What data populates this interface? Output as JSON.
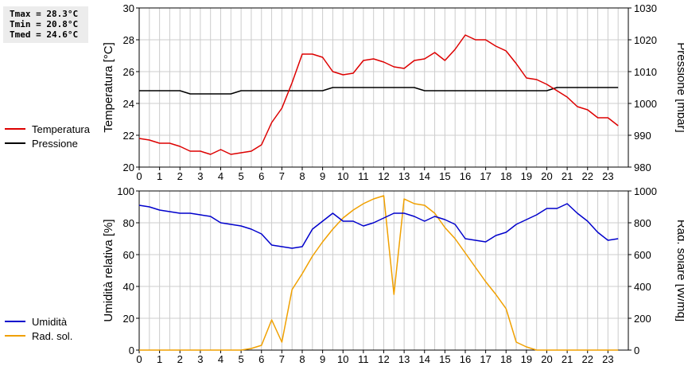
{
  "stats": {
    "tmax": "Tmax = 28.3°C",
    "tmin": "Tmin = 20.8°C",
    "tmed": "Tmed = 24.6°C"
  },
  "colors": {
    "temperature": "#dd0000",
    "pressure": "#000000",
    "humidity": "#0000cc",
    "radiation": "#f0a000",
    "grid": "#cccccc"
  },
  "chart_data": [
    {
      "type": "line",
      "legend": [
        {
          "name": "Temperatura",
          "color": "#dd0000"
        },
        {
          "name": "Pressione",
          "color": "#000000"
        }
      ],
      "xlabel": "",
      "ylabel": "Temperatura [°C]",
      "y2label": "Pressione [mbar]",
      "xlim": [
        0,
        24
      ],
      "ylim": [
        20,
        30
      ],
      "y2lim": [
        980,
        1030
      ],
      "xticks": [
        "0",
        "1",
        "2",
        "3",
        "4",
        "5",
        "6",
        "7",
        "8",
        "9",
        "10",
        "11",
        "12",
        "13",
        "14",
        "15",
        "16",
        "17",
        "18",
        "19",
        "20",
        "21",
        "22",
        "23"
      ],
      "yticks": [
        "20",
        "22",
        "24",
        "26",
        "28",
        "30"
      ],
      "y2ticks": [
        "980",
        "990",
        "1000",
        "1010",
        "1020",
        "1030"
      ],
      "grid": true,
      "series": [
        {
          "name": "Temperatura",
          "axis": "left",
          "x": [
            0,
            0.5,
            1,
            1.5,
            2,
            2.5,
            3,
            3.5,
            4,
            4.5,
            5,
            5.5,
            6,
            6.5,
            7,
            7.5,
            8,
            8.5,
            9,
            9.5,
            10,
            10.5,
            11,
            11.5,
            12,
            12.5,
            13,
            13.5,
            14,
            14.5,
            15,
            15.5,
            16,
            16.5,
            17,
            17.5,
            18,
            18.5,
            19,
            19.5,
            20,
            20.5,
            21,
            21.5,
            22,
            22.5,
            23,
            23.5
          ],
          "values": [
            21.8,
            21.7,
            21.5,
            21.5,
            21.3,
            21.0,
            21.0,
            20.8,
            21.1,
            20.8,
            20.9,
            21.0,
            21.4,
            22.8,
            23.7,
            25.3,
            27.1,
            27.1,
            26.9,
            26.0,
            25.8,
            25.9,
            26.7,
            26.8,
            26.6,
            26.3,
            26.2,
            26.7,
            26.8,
            27.2,
            26.7,
            27.4,
            28.3,
            28.0,
            28.0,
            27.6,
            27.3,
            26.5,
            25.6,
            25.5,
            25.2,
            24.8,
            24.4,
            23.8,
            23.6,
            23.1,
            23.1,
            22.6
          ]
        },
        {
          "name": "Pressione",
          "axis": "right",
          "x": [
            0,
            0.5,
            1,
            1.5,
            2,
            2.5,
            3,
            3.5,
            4,
            4.5,
            5,
            5.5,
            6,
            6.5,
            7,
            7.5,
            8,
            8.5,
            9,
            9.5,
            10,
            10.5,
            11,
            11.5,
            12,
            12.5,
            13,
            13.5,
            14,
            14.5,
            15,
            15.5,
            16,
            16.5,
            17,
            17.5,
            18,
            18.5,
            19,
            19.5,
            20,
            20.5,
            21,
            21.5,
            22,
            22.5,
            23,
            23.5
          ],
          "values": [
            1004,
            1004,
            1004,
            1004,
            1004,
            1003,
            1003,
            1003,
            1003,
            1003,
            1004,
            1004,
            1004,
            1004,
            1004,
            1004,
            1004,
            1004,
            1004,
            1005,
            1005,
            1005,
            1005,
            1005,
            1005,
            1005,
            1005,
            1005,
            1004,
            1004,
            1004,
            1004,
            1004,
            1004,
            1004,
            1004,
            1004,
            1004,
            1004,
            1004,
            1004,
            1005,
            1005,
            1005,
            1005,
            1005,
            1005,
            1005
          ]
        }
      ]
    },
    {
      "type": "line",
      "legend": [
        {
          "name": "Umidità",
          "color": "#0000cc"
        },
        {
          "name": "Rad. sol.",
          "color": "#f0a000"
        }
      ],
      "xlabel": "",
      "ylabel": "Umidità relativa [%]",
      "y2label": "Rad. solare [W/mq]",
      "xlim": [
        0,
        24
      ],
      "ylim": [
        0,
        100
      ],
      "y2lim": [
        0,
        1000
      ],
      "xticks": [
        "0",
        "1",
        "2",
        "3",
        "4",
        "5",
        "6",
        "7",
        "8",
        "9",
        "10",
        "11",
        "12",
        "13",
        "14",
        "15",
        "16",
        "17",
        "18",
        "19",
        "20",
        "21",
        "22",
        "23"
      ],
      "yticks": [
        "0",
        "20",
        "40",
        "60",
        "80",
        "100"
      ],
      "y2ticks": [
        "0",
        "200",
        "400",
        "600",
        "800",
        "1000"
      ],
      "grid": true,
      "series": [
        {
          "name": "Umidità",
          "axis": "left",
          "x": [
            0,
            0.5,
            1,
            1.5,
            2,
            2.5,
            3,
            3.5,
            4,
            4.5,
            5,
            5.5,
            6,
            6.5,
            7,
            7.5,
            8,
            8.5,
            9,
            9.5,
            10,
            10.5,
            11,
            11.5,
            12,
            12.5,
            13,
            13.5,
            14,
            14.5,
            15,
            15.5,
            16,
            16.5,
            17,
            17.5,
            18,
            18.5,
            19,
            19.5,
            20,
            20.5,
            21,
            21.5,
            22,
            22.5,
            23,
            23.5
          ],
          "values": [
            91,
            90,
            88,
            87,
            86,
            86,
            85,
            84,
            80,
            79,
            78,
            76,
            73,
            66,
            65,
            64,
            65,
            76,
            81,
            86,
            81,
            81,
            78,
            80,
            83,
            86,
            86,
            84,
            81,
            84,
            82,
            79,
            70,
            69,
            68,
            72,
            74,
            79,
            82,
            85,
            89,
            89,
            92,
            86,
            81,
            74,
            69,
            70
          ]
        },
        {
          "name": "Rad. sol.",
          "axis": "right",
          "x": [
            0,
            0.5,
            1,
            1.5,
            2,
            2.5,
            3,
            3.5,
            4,
            4.5,
            5,
            5.5,
            6,
            6.5,
            7,
            7.5,
            8,
            8.5,
            9,
            9.5,
            10,
            10.5,
            11,
            11.5,
            12,
            12.5,
            13,
            13.5,
            14,
            14.5,
            15,
            15.5,
            16,
            16.5,
            17,
            17.5,
            18,
            18.5,
            19,
            19.5,
            20,
            20.5,
            21,
            21.5,
            22,
            22.5,
            23,
            23.5
          ],
          "values": [
            0,
            0,
            0,
            0,
            0,
            0,
            0,
            0,
            0,
            0,
            0,
            10,
            30,
            190,
            50,
            380,
            480,
            590,
            680,
            760,
            830,
            880,
            920,
            950,
            970,
            350,
            950,
            920,
            910,
            860,
            770,
            700,
            610,
            520,
            430,
            350,
            260,
            50,
            20,
            0,
            0,
            0,
            0,
            0,
            0,
            0,
            0,
            0
          ]
        }
      ]
    }
  ]
}
